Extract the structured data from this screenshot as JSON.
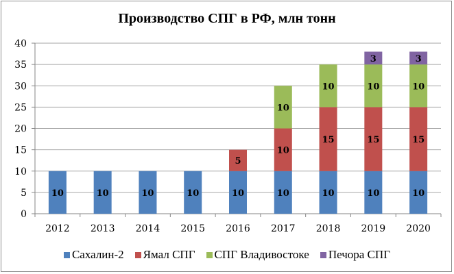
{
  "chart_data": {
    "type": "bar",
    "stacked": true,
    "title": "Производство СПГ в РФ, млн тонн",
    "xlabel": "",
    "ylabel": "",
    "ylim": [
      0,
      40
    ],
    "yticks": [
      0,
      5,
      10,
      15,
      20,
      25,
      30,
      35,
      40
    ],
    "grid": true,
    "legend_position": "bottom",
    "categories": [
      "2012",
      "2013",
      "2014",
      "2015",
      "2016",
      "2017",
      "2018",
      "2019",
      "2020"
    ],
    "series": [
      {
        "name": "Сахалин-2",
        "color": "#4f81bd",
        "values": [
          10,
          10,
          10,
          10,
          10,
          10,
          10,
          10,
          10
        ]
      },
      {
        "name": "Ямал СПГ",
        "color": "#c0504d",
        "values": [
          0,
          0,
          0,
          0,
          5,
          10,
          15,
          15,
          15
        ]
      },
      {
        "name": "СПГ Владивостоке",
        "color": "#9bbb59",
        "values": [
          0,
          0,
          0,
          0,
          0,
          10,
          10,
          10,
          10
        ]
      },
      {
        "name": "Печора СПГ",
        "color": "#8064a2",
        "values": [
          0,
          0,
          0,
          0,
          0,
          0,
          0,
          3,
          3
        ]
      }
    ]
  }
}
